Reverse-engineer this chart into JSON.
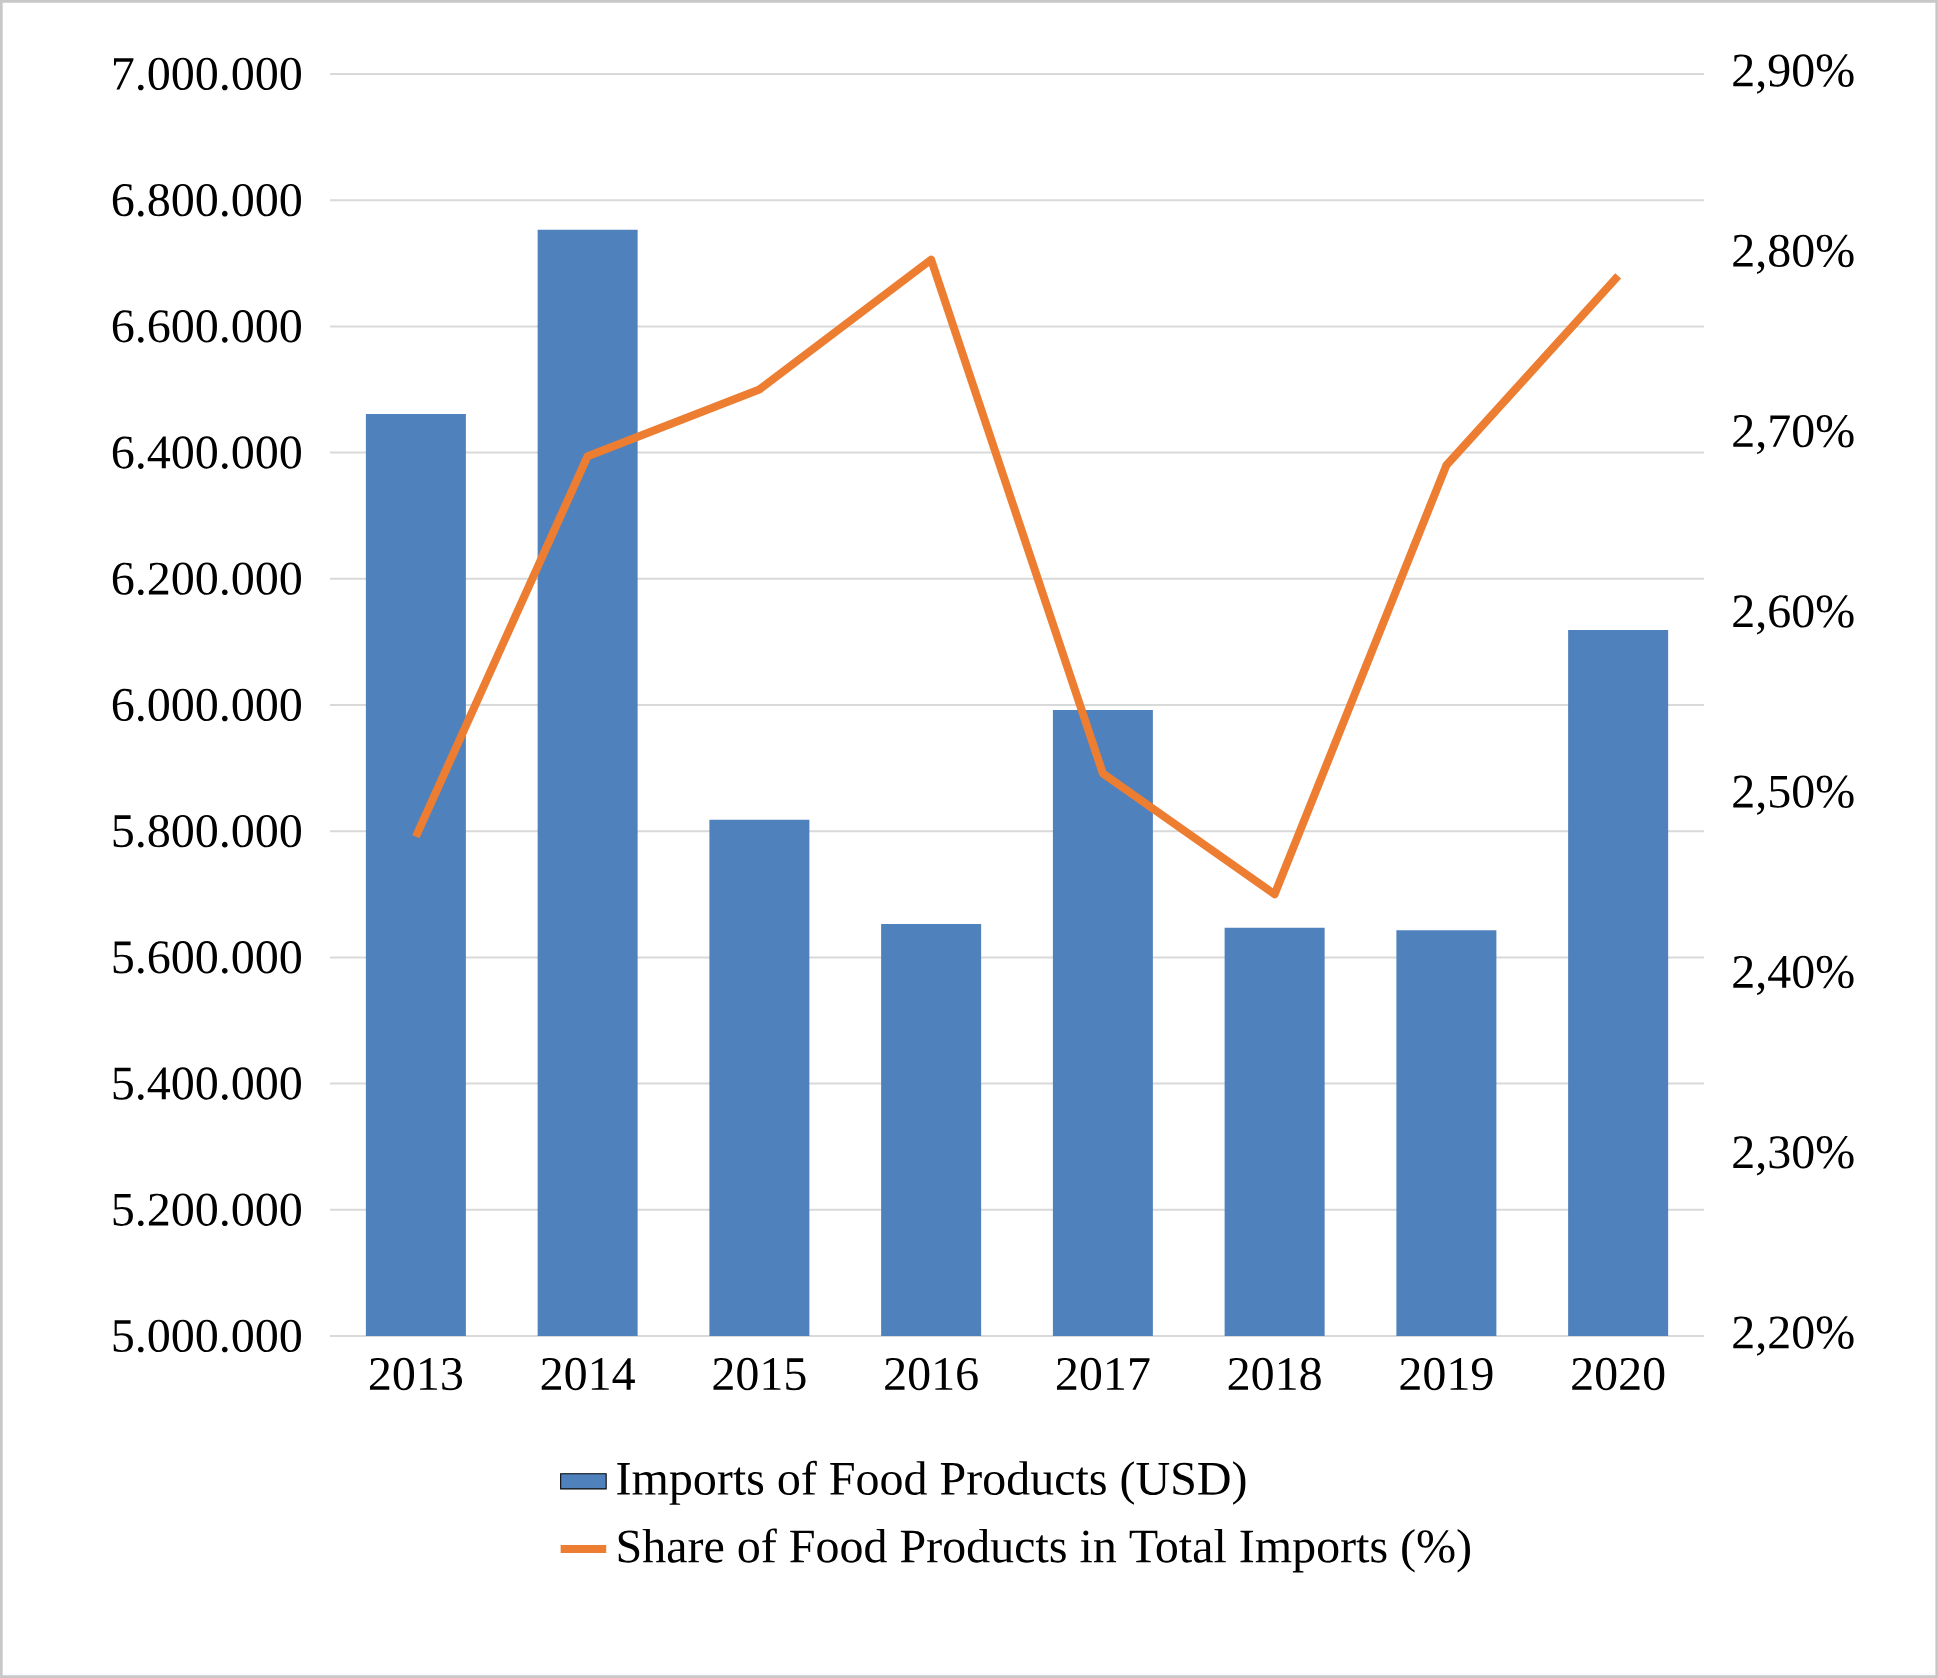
{
  "chart_data": {
    "type": "bar",
    "categories": [
      "2013",
      "2014",
      "2015",
      "2016",
      "2017",
      "2018",
      "2019",
      "2020"
    ],
    "series": [
      {
        "name": "Imports of Food Products (USD)",
        "color": "#4f81bd",
        "values": [
          6461000,
          6753000,
          5818000,
          5653000,
          5992000,
          5647000,
          5643000,
          6119000
        ]
      },
      {
        "name": "Share of Food Products in Total Imports (%)",
        "type": "line",
        "axis": "y2",
        "color": "#ed7d31",
        "values": [
          2.477,
          2.688,
          2.725,
          2.797,
          2.512,
          2.445,
          2.683,
          2.788
        ]
      }
    ],
    "ylim": [
      5000000,
      7000000
    ],
    "yticks": [
      {
        "value": 5000000,
        "label": "5.000.000"
      },
      {
        "value": 5200000,
        "label": "5.200.000"
      },
      {
        "value": 5400000,
        "label": "5.400.000"
      },
      {
        "value": 5600000,
        "label": "5.600.000"
      },
      {
        "value": 5800000,
        "label": "5.800.000"
      },
      {
        "value": 6000000,
        "label": "6.000.000"
      },
      {
        "value": 6200000,
        "label": "6.200.000"
      },
      {
        "value": 6400000,
        "label": "6.400.000"
      },
      {
        "value": 6600000,
        "label": "6.600.000"
      },
      {
        "value": 6800000,
        "label": "6.800.000"
      },
      {
        "value": 7000000,
        "label": "7.000.000"
      }
    ],
    "y2lim": [
      2.2,
      2.9
    ],
    "y2ticks": [
      {
        "value": 2.2,
        "label": "2,20%"
      },
      {
        "value": 2.3,
        "label": "2,30%"
      },
      {
        "value": 2.4,
        "label": "2,40%"
      },
      {
        "value": 2.5,
        "label": "2,50%"
      },
      {
        "value": 2.6,
        "label": "2,60%"
      },
      {
        "value": 2.7,
        "label": "2,70%"
      },
      {
        "value": 2.8,
        "label": "2,80%"
      },
      {
        "value": 2.9,
        "label": "2,90%"
      }
    ],
    "grid": "y",
    "legend": "bottom"
  }
}
